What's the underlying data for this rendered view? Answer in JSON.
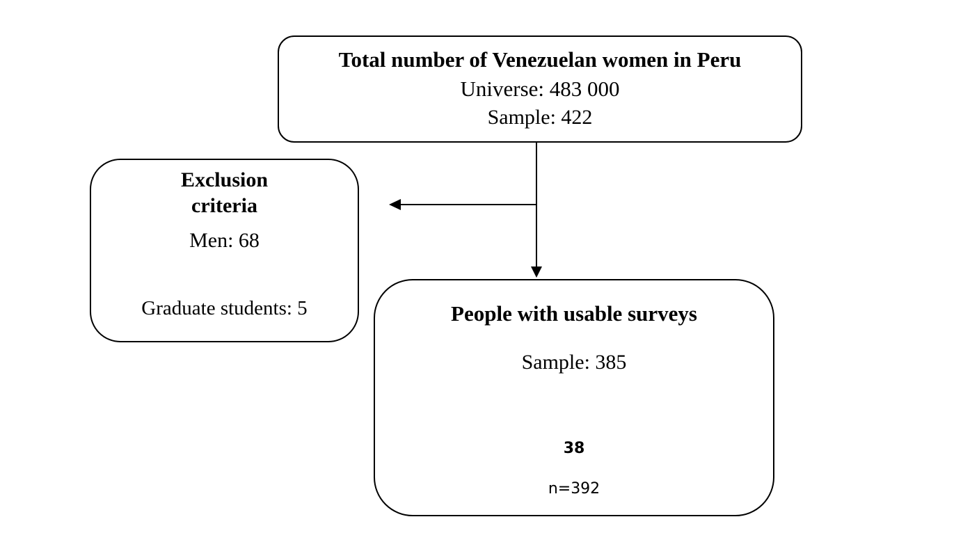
{
  "total_box": {
    "title": "Total number of Venezuelan women in Peru",
    "universe": "Universe: 483 000",
    "sample": "Sample: 422"
  },
  "exclusion_box": {
    "title_line1": "Exclusion",
    "title_line2": "criteria",
    "men": "Men: 68",
    "graduates": "Graduate students: 5"
  },
  "usable_box": {
    "title": "People with usable surveys",
    "sample": "Sample: 385",
    "count": "38",
    "n": "n=392"
  }
}
